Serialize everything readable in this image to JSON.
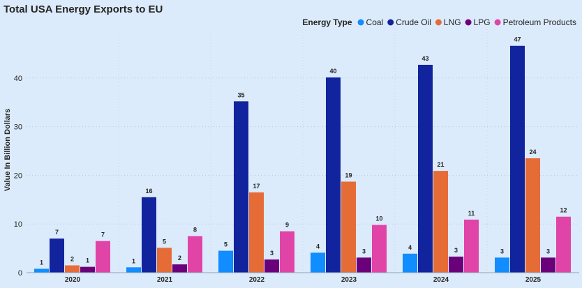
{
  "chart_data": {
    "type": "bar",
    "title": "Total USA Energy Exports to EU",
    "xlabel": "",
    "ylabel": "Value In Billion Dollars",
    "legend_title": "Energy Type",
    "legend_position": "top-right",
    "grid": true,
    "ylim": [
      0,
      50
    ],
    "yticks": [
      0,
      10,
      20,
      30,
      40
    ],
    "categories": [
      "2020",
      "2021",
      "2022",
      "2023",
      "2024",
      "2025"
    ],
    "series": [
      {
        "name": "Coal",
        "color": "#118dff",
        "values": [
          0.8,
          1.1,
          4.5,
          4.1,
          3.9,
          3.1
        ],
        "labels": [
          "1",
          "1",
          "5",
          "4",
          "4",
          "3"
        ]
      },
      {
        "name": "Crude Oil",
        "color": "#12239e",
        "values": [
          7.0,
          15.5,
          35.2,
          40.1,
          42.7,
          46.6
        ],
        "labels": [
          "7",
          "16",
          "35",
          "40",
          "43",
          "47"
        ]
      },
      {
        "name": "LNG",
        "color": "#e66c37",
        "values": [
          1.5,
          5.1,
          16.5,
          18.7,
          20.9,
          23.5
        ],
        "labels": [
          "2",
          "5",
          "17",
          "19",
          "21",
          "24"
        ]
      },
      {
        "name": "LPG",
        "color": "#6b007b",
        "values": [
          1.2,
          1.7,
          2.7,
          3.1,
          3.3,
          3.1
        ],
        "labels": [
          "1",
          "2",
          "3",
          "3",
          "3",
          "3"
        ]
      },
      {
        "name": "Petroleum Products",
        "color": "#e044a7",
        "values": [
          6.5,
          7.5,
          8.5,
          9.8,
          10.9,
          11.5
        ],
        "labels": [
          "7",
          "8",
          "9",
          "10",
          "11",
          "12"
        ]
      }
    ]
  }
}
